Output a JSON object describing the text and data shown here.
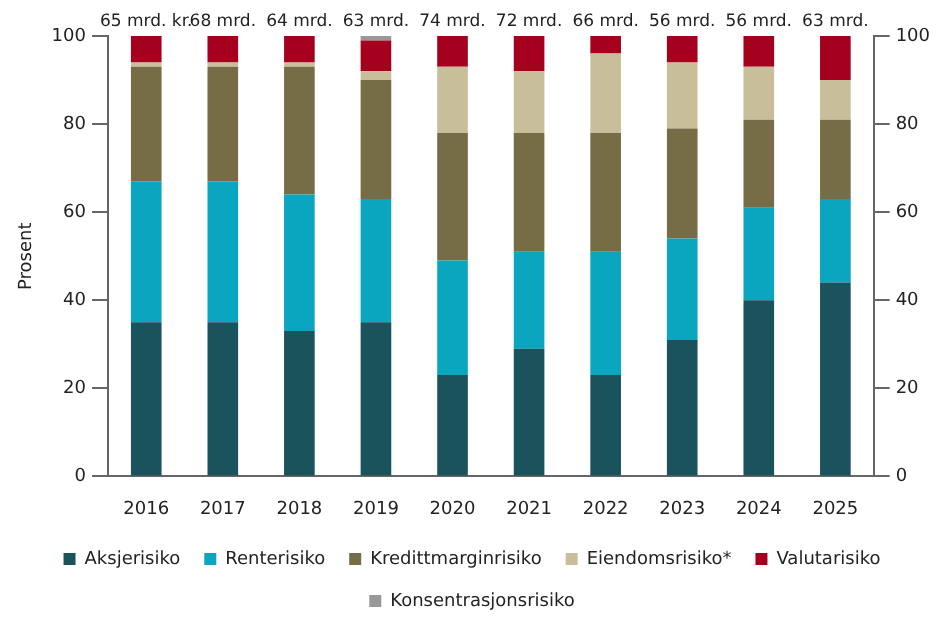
{
  "chart_data": {
    "type": "bar",
    "stacked": true,
    "ylabel": "Prosent",
    "categories": [
      "2016",
      "2017",
      "2018",
      "2019",
      "2020",
      "2021",
      "2022",
      "2023",
      "2024",
      "2025"
    ],
    "series": [
      {
        "name": "Aksjerisiko",
        "color": "#1a535c",
        "values": [
          35,
          35,
          33,
          35,
          23,
          29,
          23,
          31,
          40,
          44
        ]
      },
      {
        "name": "Renterisiko",
        "color": "#0aa5bf",
        "values": [
          32,
          32,
          31,
          28,
          26,
          22,
          28,
          23,
          21,
          19
        ]
      },
      {
        "name": "Kredittmarginrisiko",
        "color": "#766c45",
        "values": [
          26,
          26,
          29,
          27,
          29,
          27,
          27,
          25,
          20,
          18
        ]
      },
      {
        "name": "Eiendomsrisiko*",
        "color": "#c8be99",
        "values": [
          1,
          1,
          1,
          2,
          15,
          14,
          18,
          15,
          12,
          9
        ]
      },
      {
        "name": "Valutarisiko",
        "color": "#a6001f",
        "values": [
          6,
          6,
          6,
          7,
          7,
          8,
          4,
          6,
          7,
          10
        ]
      },
      {
        "name": "Konsentrasjonsrisiko",
        "color": "#999999",
        "values": [
          0,
          0,
          0,
          1,
          0,
          0,
          0,
          0,
          0,
          0
        ]
      }
    ],
    "ylim": [
      0,
      100
    ],
    "yticks": [
      0,
      20,
      40,
      60,
      80,
      100
    ],
    "y2lim": [
      0,
      100
    ],
    "y2ticks": [
      0,
      20,
      40,
      60,
      80,
      100
    ],
    "grid": false,
    "legend": "bottom",
    "annotations": [
      {
        "text": "65 mrd. kr.",
        "x": "2016",
        "y": 100
      },
      {
        "text": "68 mrd.",
        "x": "2017",
        "y": 100
      },
      {
        "text": "64 mrd.",
        "x": "2018",
        "y": 100
      },
      {
        "text": "63 mrd.",
        "x": "2019",
        "y": 100
      },
      {
        "text": "74 mrd.",
        "x": "2020",
        "y": 100
      },
      {
        "text": "72 mrd.",
        "x": "2021",
        "y": 100
      },
      {
        "text": "66 mrd.",
        "x": "2022",
        "y": 100
      },
      {
        "text": "56 mrd.",
        "x": "2023",
        "y": 100
      },
      {
        "text": "56 mrd.",
        "x": "2024",
        "y": 100
      },
      {
        "text": "63 mrd.",
        "x": "2025",
        "y": 100
      }
    ]
  }
}
